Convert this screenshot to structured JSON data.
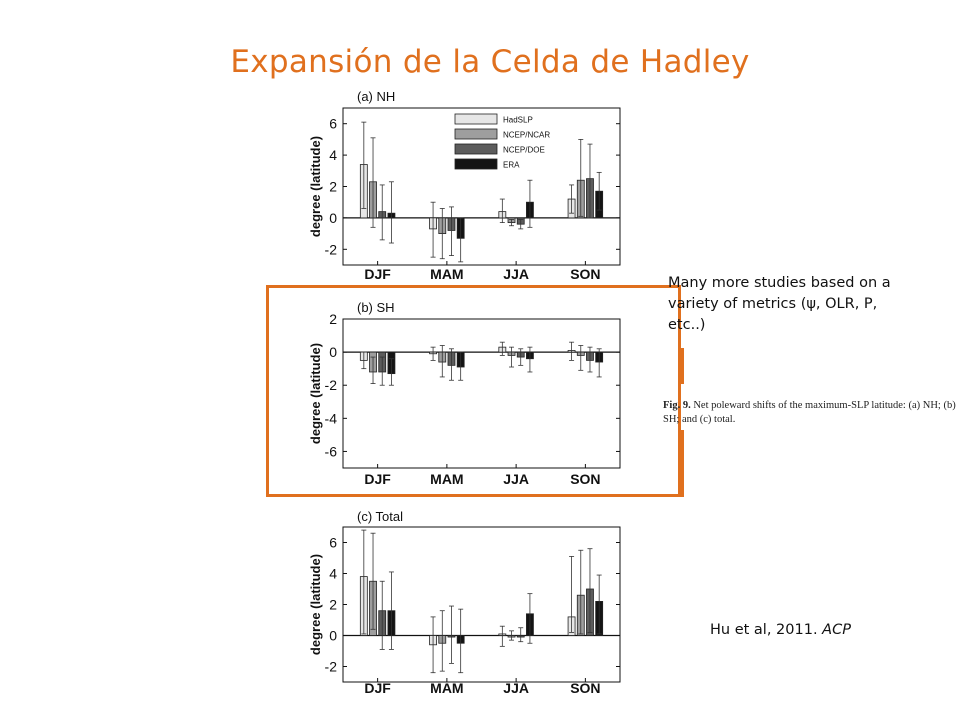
{
  "slide": {
    "title": "Expansión de la Celda de Hadley",
    "callout": "Many more studies based on a variety of metrics (ψ, OLR, P, etc..)",
    "caption_label": "Fig. 9.",
    "caption_text": "Net poleward shifts of the maximum-SLP latitude: (a) NH; (b) SH; and (c) total.",
    "citation_authors": "Hu et al, 2011. ",
    "citation_journal": "ACP",
    "accent_color": "#e0701e"
  },
  "chart_data": [
    {
      "type": "bar",
      "title": "(a) NH",
      "ylabel": "degree (latitude)",
      "ylim": [
        -3,
        7
      ],
      "yticks": [
        -2,
        0,
        2,
        4,
        6
      ],
      "grid": false,
      "legend": "top-center",
      "categories": [
        "DJF",
        "MAM",
        "JJA",
        "SON"
      ],
      "series": [
        {
          "name": "HadSLP",
          "color": "#e6e6e6",
          "values": [
            3.4,
            -0.7,
            0.4,
            1.2
          ],
          "err_low": [
            0.6,
            -2.5,
            -0.3,
            0.3
          ],
          "err_high": [
            6.1,
            1.0,
            1.2,
            2.1
          ]
        },
        {
          "name": "NCEP/NCAR",
          "color": "#9e9e9e",
          "values": [
            2.3,
            -1.0,
            -0.3,
            2.4
          ],
          "err_low": [
            -0.6,
            -2.6,
            -0.5,
            0.1
          ],
          "err_high": [
            5.1,
            0.6,
            -0.1,
            5.0
          ]
        },
        {
          "name": "NCEP/DOE",
          "color": "#5c5c5c",
          "values": [
            0.4,
            -0.8,
            -0.4,
            2.5
          ],
          "err_low": [
            -1.4,
            -2.4,
            -0.7,
            0.0
          ],
          "err_high": [
            2.1,
            0.7,
            -0.1,
            4.7
          ]
        },
        {
          "name": "ERA",
          "color": "#141414",
          "values": [
            0.3,
            -1.3,
            1.0,
            1.7
          ],
          "err_low": [
            -1.6,
            -2.8,
            -0.6,
            0.5
          ],
          "err_high": [
            2.3,
            0.0,
            2.4,
            2.9
          ]
        }
      ]
    },
    {
      "type": "bar",
      "title": "(b) SH",
      "ylabel": "degree (latitude)",
      "ylim": [
        -7,
        2
      ],
      "yticks": [
        -6,
        -4,
        -2,
        0,
        2
      ],
      "grid": false,
      "legend": "none",
      "categories": [
        "DJF",
        "MAM",
        "JJA",
        "SON"
      ],
      "series": [
        {
          "name": "HadSLP",
          "color": "#e6e6e6",
          "values": [
            -0.5,
            -0.1,
            0.3,
            0.1
          ],
          "err_low": [
            -1.0,
            -0.5,
            -0.2,
            -0.5
          ],
          "err_high": [
            0.0,
            0.3,
            0.6,
            0.6
          ]
        },
        {
          "name": "NCEP/NCAR",
          "color": "#9e9e9e",
          "values": [
            -1.2,
            -0.6,
            -0.2,
            -0.2
          ],
          "err_low": [
            -1.9,
            -1.5,
            -0.9,
            -1.1
          ],
          "err_high": [
            -0.3,
            0.4,
            0.3,
            0.4
          ]
        },
        {
          "name": "NCEP/DOE",
          "color": "#5c5c5c",
          "values": [
            -1.2,
            -0.8,
            -0.3,
            -0.5
          ],
          "err_low": [
            -2.0,
            -1.7,
            -0.8,
            -1.2
          ],
          "err_high": [
            -0.3,
            0.2,
            0.2,
            0.3
          ]
        },
        {
          "name": "ERA",
          "color": "#141414",
          "values": [
            -1.3,
            -0.9,
            -0.4,
            -0.6
          ],
          "err_low": [
            -2.0,
            -1.7,
            -1.2,
            -1.5
          ],
          "err_high": [
            -0.4,
            0.0,
            0.3,
            0.2
          ]
        }
      ]
    },
    {
      "type": "bar",
      "title": "(c) Total",
      "ylabel": "degree (latitude)",
      "ylim": [
        -3,
        7
      ],
      "yticks": [
        -2,
        0,
        2,
        4,
        6
      ],
      "grid": false,
      "legend": "none",
      "categories": [
        "DJF",
        "MAM",
        "JJA",
        "SON"
      ],
      "series": [
        {
          "name": "HadSLP",
          "color": "#e6e6e6",
          "values": [
            3.8,
            -0.6,
            0.1,
            1.2
          ],
          "err_low": [
            0.1,
            -2.4,
            -0.7,
            0.2
          ],
          "err_high": [
            6.8,
            1.2,
            0.6,
            5.1
          ]
        },
        {
          "name": "NCEP/NCAR",
          "color": "#9e9e9e",
          "values": [
            3.5,
            -0.5,
            -0.1,
            2.6
          ],
          "err_low": [
            0.4,
            -2.3,
            -0.3,
            0.1
          ],
          "err_high": [
            6.6,
            1.6,
            0.3,
            5.5
          ]
        },
        {
          "name": "NCEP/DOE",
          "color": "#5c5c5c",
          "values": [
            1.6,
            -0.1,
            -0.1,
            3.0
          ],
          "err_low": [
            -0.9,
            -1.8,
            -0.4,
            0.2
          ],
          "err_high": [
            3.5,
            1.9,
            0.5,
            5.6
          ]
        },
        {
          "name": "ERA",
          "color": "#141414",
          "values": [
            1.6,
            -0.5,
            1.4,
            2.2
          ],
          "err_low": [
            -0.9,
            -2.4,
            -0.5,
            0.1
          ],
          "err_high": [
            4.1,
            1.7,
            2.7,
            3.9
          ]
        }
      ]
    }
  ]
}
